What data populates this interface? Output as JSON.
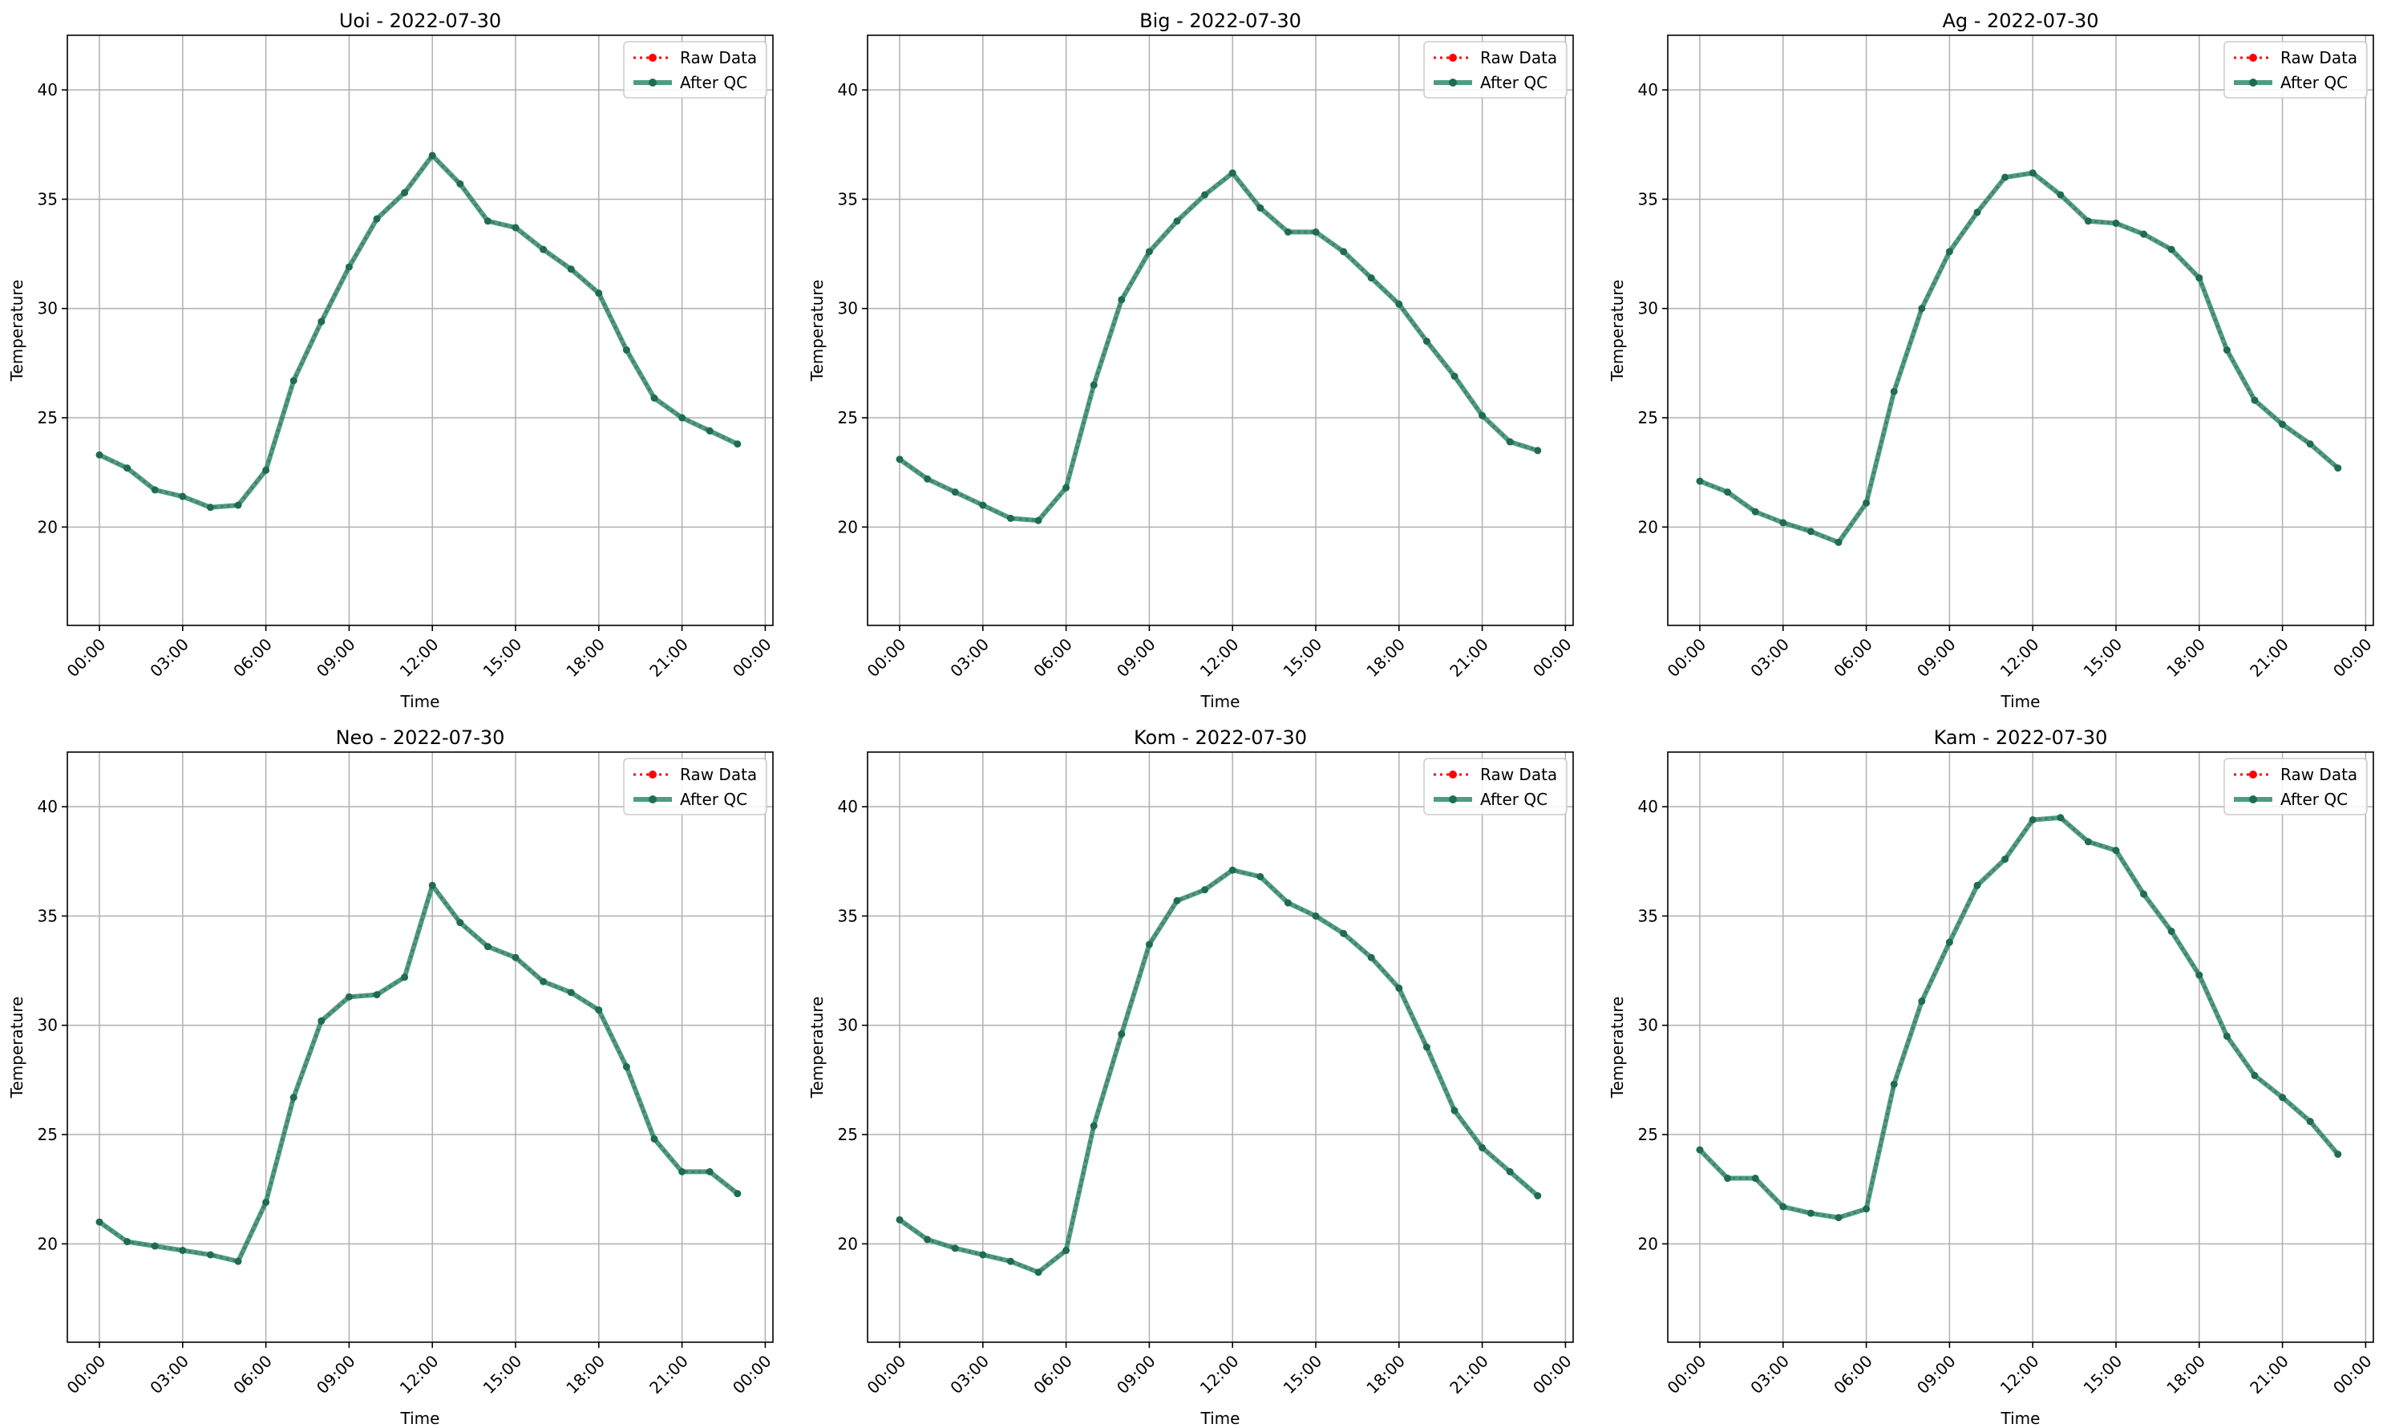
{
  "legend": {
    "raw_label": "Raw Data",
    "qc_label": "After QC"
  },
  "colors": {
    "raw": "#ff0000",
    "qc": "#2e8b6e",
    "qc_marker": "#1f6b54",
    "grid": "#b0b0b0"
  },
  "chart_data": [
    {
      "type": "line",
      "title": "Uoi - 2022-07-30",
      "xlabel": "Time",
      "ylabel": "Temperature",
      "x": [
        "00:00",
        "01:00",
        "02:00",
        "03:00",
        "04:00",
        "05:00",
        "06:00",
        "07:00",
        "08:00",
        "09:00",
        "10:00",
        "11:00",
        "12:00",
        "13:00",
        "14:00",
        "15:00",
        "16:00",
        "17:00",
        "18:00",
        "19:00",
        "20:00",
        "21:00",
        "22:00",
        "23:00"
      ],
      "xticks": [
        "00:00",
        "03:00",
        "06:00",
        "09:00",
        "12:00",
        "15:00",
        "18:00",
        "21:00",
        "00:00"
      ],
      "ylim": [
        15.5,
        42.5
      ],
      "yticks": [
        20,
        25,
        30,
        35,
        40
      ],
      "grid": true,
      "legend_position": "top-right",
      "series": [
        {
          "name": "Raw Data",
          "values": [
            23.3,
            22.7,
            21.7,
            21.4,
            20.9,
            21.0,
            22.6,
            26.7,
            29.4,
            31.9,
            34.1,
            35.3,
            37.0,
            35.7,
            34.0,
            33.7,
            32.7,
            31.8,
            30.7,
            28.1,
            25.9,
            25.0,
            24.4,
            23.8
          ]
        },
        {
          "name": "After QC",
          "values": [
            23.3,
            22.7,
            21.7,
            21.4,
            20.9,
            21.0,
            22.6,
            26.7,
            29.4,
            31.9,
            34.1,
            35.3,
            37.0,
            35.7,
            34.0,
            33.7,
            32.7,
            31.8,
            30.7,
            28.1,
            25.9,
            25.0,
            24.4,
            23.8
          ]
        }
      ]
    },
    {
      "type": "line",
      "title": "Big - 2022-07-30",
      "xlabel": "Time",
      "ylabel": "Temperature",
      "x": [
        "00:00",
        "01:00",
        "02:00",
        "03:00",
        "04:00",
        "05:00",
        "06:00",
        "07:00",
        "08:00",
        "09:00",
        "10:00",
        "11:00",
        "12:00",
        "13:00",
        "14:00",
        "15:00",
        "16:00",
        "17:00",
        "18:00",
        "19:00",
        "20:00",
        "21:00",
        "22:00",
        "23:00"
      ],
      "xticks": [
        "00:00",
        "03:00",
        "06:00",
        "09:00",
        "12:00",
        "15:00",
        "18:00",
        "21:00",
        "00:00"
      ],
      "ylim": [
        15.5,
        42.5
      ],
      "yticks": [
        20,
        25,
        30,
        35,
        40
      ],
      "grid": true,
      "legend_position": "top-right",
      "series": [
        {
          "name": "Raw Data",
          "values": [
            23.1,
            22.2,
            21.6,
            21.0,
            20.4,
            20.3,
            21.8,
            26.5,
            30.4,
            32.6,
            34.0,
            35.2,
            36.2,
            34.6,
            33.5,
            33.5,
            32.6,
            31.4,
            30.2,
            28.5,
            26.9,
            25.1,
            23.9,
            23.5
          ]
        },
        {
          "name": "After QC",
          "values": [
            23.1,
            22.2,
            21.6,
            21.0,
            20.4,
            20.3,
            21.8,
            26.5,
            30.4,
            32.6,
            34.0,
            35.2,
            36.2,
            34.6,
            33.5,
            33.5,
            32.6,
            31.4,
            30.2,
            28.5,
            26.9,
            25.1,
            23.9,
            23.5
          ]
        }
      ]
    },
    {
      "type": "line",
      "title": "Ag - 2022-07-30",
      "xlabel": "Time",
      "ylabel": "Temperature",
      "x": [
        "00:00",
        "01:00",
        "02:00",
        "03:00",
        "04:00",
        "05:00",
        "06:00",
        "07:00",
        "08:00",
        "09:00",
        "10:00",
        "11:00",
        "12:00",
        "13:00",
        "14:00",
        "15:00",
        "16:00",
        "17:00",
        "18:00",
        "19:00",
        "20:00",
        "21:00",
        "22:00",
        "23:00"
      ],
      "xticks": [
        "00:00",
        "03:00",
        "06:00",
        "09:00",
        "12:00",
        "15:00",
        "18:00",
        "21:00",
        "00:00"
      ],
      "ylim": [
        15.5,
        42.5
      ],
      "yticks": [
        20,
        25,
        30,
        35,
        40
      ],
      "grid": true,
      "legend_position": "top-right",
      "series": [
        {
          "name": "Raw Data",
          "values": [
            22.1,
            21.6,
            20.7,
            20.2,
            19.8,
            19.3,
            21.1,
            26.2,
            30.0,
            32.6,
            34.4,
            36.0,
            36.2,
            35.2,
            34.0,
            33.9,
            33.4,
            32.7,
            31.4,
            28.1,
            25.8,
            24.7,
            23.8,
            22.7
          ]
        },
        {
          "name": "After QC",
          "values": [
            22.1,
            21.6,
            20.7,
            20.2,
            19.8,
            19.3,
            21.1,
            26.2,
            30.0,
            32.6,
            34.4,
            36.0,
            36.2,
            35.2,
            34.0,
            33.9,
            33.4,
            32.7,
            31.4,
            28.1,
            25.8,
            24.7,
            23.8,
            22.7
          ]
        }
      ]
    },
    {
      "type": "line",
      "title": "Neo - 2022-07-30",
      "xlabel": "Time",
      "ylabel": "Temperature",
      "x": [
        "00:00",
        "01:00",
        "02:00",
        "03:00",
        "04:00",
        "05:00",
        "06:00",
        "07:00",
        "08:00",
        "09:00",
        "10:00",
        "11:00",
        "12:00",
        "13:00",
        "14:00",
        "15:00",
        "16:00",
        "17:00",
        "18:00",
        "19:00",
        "20:00",
        "21:00",
        "22:00",
        "23:00"
      ],
      "xticks": [
        "00:00",
        "03:00",
        "06:00",
        "09:00",
        "12:00",
        "15:00",
        "18:00",
        "21:00",
        "00:00"
      ],
      "ylim": [
        15.5,
        42.5
      ],
      "yticks": [
        20,
        25,
        30,
        35,
        40
      ],
      "grid": true,
      "legend_position": "top-right",
      "series": [
        {
          "name": "Raw Data",
          "values": [
            21.0,
            20.1,
            19.9,
            19.7,
            19.5,
            19.2,
            21.9,
            26.7,
            30.2,
            31.3,
            31.4,
            32.2,
            36.4,
            34.7,
            33.6,
            33.1,
            32.0,
            31.5,
            30.7,
            28.1,
            24.8,
            23.3,
            23.3,
            22.3
          ]
        },
        {
          "name": "After QC",
          "values": [
            21.0,
            20.1,
            19.9,
            19.7,
            19.5,
            19.2,
            21.9,
            26.7,
            30.2,
            31.3,
            31.4,
            32.2,
            36.4,
            34.7,
            33.6,
            33.1,
            32.0,
            31.5,
            30.7,
            28.1,
            24.8,
            23.3,
            23.3,
            22.3
          ]
        }
      ]
    },
    {
      "type": "line",
      "title": "Kom - 2022-07-30",
      "xlabel": "Time",
      "ylabel": "Temperature",
      "x": [
        "00:00",
        "01:00",
        "02:00",
        "03:00",
        "04:00",
        "05:00",
        "06:00",
        "07:00",
        "08:00",
        "09:00",
        "10:00",
        "11:00",
        "12:00",
        "13:00",
        "14:00",
        "15:00",
        "16:00",
        "17:00",
        "18:00",
        "19:00",
        "20:00",
        "21:00",
        "22:00",
        "23:00"
      ],
      "xticks": [
        "00:00",
        "03:00",
        "06:00",
        "09:00",
        "12:00",
        "15:00",
        "18:00",
        "21:00",
        "00:00"
      ],
      "ylim": [
        15.5,
        42.5
      ],
      "yticks": [
        20,
        25,
        30,
        35,
        40
      ],
      "grid": true,
      "legend_position": "top-right",
      "series": [
        {
          "name": "Raw Data",
          "values": [
            21.1,
            20.2,
            19.8,
            19.5,
            19.2,
            18.7,
            19.7,
            25.4,
            29.6,
            33.7,
            35.7,
            36.2,
            37.1,
            36.8,
            35.6,
            35.0,
            34.2,
            33.1,
            31.7,
            29.0,
            26.1,
            24.4,
            23.3,
            22.2
          ]
        },
        {
          "name": "After QC",
          "values": [
            21.1,
            20.2,
            19.8,
            19.5,
            19.2,
            18.7,
            19.7,
            25.4,
            29.6,
            33.7,
            35.7,
            36.2,
            37.1,
            36.8,
            35.6,
            35.0,
            34.2,
            33.1,
            31.7,
            29.0,
            26.1,
            24.4,
            23.3,
            22.2
          ]
        }
      ]
    },
    {
      "type": "line",
      "title": "Kam - 2022-07-30",
      "xlabel": "Time",
      "ylabel": "Temperature",
      "x": [
        "00:00",
        "01:00",
        "02:00",
        "03:00",
        "04:00",
        "05:00",
        "06:00",
        "07:00",
        "08:00",
        "09:00",
        "10:00",
        "11:00",
        "12:00",
        "13:00",
        "14:00",
        "15:00",
        "16:00",
        "17:00",
        "18:00",
        "19:00",
        "20:00",
        "21:00",
        "22:00",
        "23:00"
      ],
      "xticks": [
        "00:00",
        "03:00",
        "06:00",
        "09:00",
        "12:00",
        "15:00",
        "18:00",
        "21:00",
        "00:00"
      ],
      "ylim": [
        15.5,
        42.5
      ],
      "yticks": [
        20,
        25,
        30,
        35,
        40
      ],
      "grid": true,
      "legend_position": "top-right",
      "series": [
        {
          "name": "Raw Data",
          "values": [
            24.3,
            23.0,
            23.0,
            21.7,
            21.4,
            21.2,
            21.6,
            27.3,
            31.1,
            33.8,
            36.4,
            37.6,
            39.4,
            39.5,
            38.4,
            38.0,
            36.0,
            34.3,
            32.3,
            29.5,
            27.7,
            26.7,
            25.6,
            24.1
          ]
        },
        {
          "name": "After QC",
          "values": [
            24.3,
            23.0,
            23.0,
            21.7,
            21.4,
            21.2,
            21.6,
            27.3,
            31.1,
            33.8,
            36.4,
            37.6,
            39.4,
            39.5,
            38.4,
            38.0,
            36.0,
            34.3,
            32.3,
            29.5,
            27.7,
            26.7,
            25.6,
            24.1
          ]
        }
      ]
    }
  ]
}
